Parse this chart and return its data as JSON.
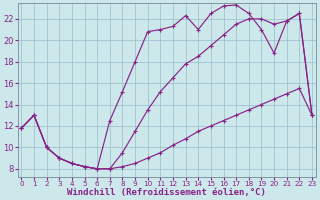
{
  "bg_color": "#cce8ea",
  "line_color": "#882288",
  "grid_color": "#99bbcc",
  "xlabel": "Windchill (Refroidissement éolien,°C)",
  "xlabel_fontsize": 6.5,
  "xtick_fontsize": 5.2,
  "ytick_fontsize": 6,
  "xlim": [
    -0.3,
    23.3
  ],
  "ylim": [
    7.2,
    23.5
  ],
  "yticks": [
    8,
    10,
    12,
    14,
    16,
    18,
    20,
    22
  ],
  "xticks": [
    0,
    1,
    2,
    3,
    4,
    5,
    6,
    7,
    8,
    9,
    10,
    11,
    12,
    13,
    14,
    15,
    16,
    17,
    18,
    19,
    20,
    21,
    22,
    23
  ],
  "line_upper_x": [
    0,
    1,
    2,
    3,
    4,
    5,
    6,
    7,
    8,
    9,
    10,
    11,
    12,
    13,
    14,
    15,
    16,
    17,
    18,
    19,
    20,
    21,
    22,
    23
  ],
  "line_upper_y": [
    11.8,
    13.0,
    10.0,
    9.0,
    8.5,
    8.2,
    8.0,
    12.5,
    15.2,
    18.0,
    20.8,
    21.0,
    21.3,
    22.3,
    21.0,
    22.5,
    23.2,
    23.3,
    22.5,
    21.0,
    18.8,
    21.8,
    22.5,
    13.0
  ],
  "line_diag_x": [
    0,
    1,
    2,
    3,
    4,
    5,
    6,
    7,
    8,
    9,
    10,
    11,
    12,
    13,
    14,
    15,
    16,
    17,
    18,
    19,
    20,
    21,
    22,
    23
  ],
  "line_diag_y": [
    11.8,
    13.0,
    10.0,
    9.0,
    8.5,
    8.2,
    8.0,
    8.0,
    9.5,
    11.5,
    13.5,
    15.2,
    16.5,
    17.8,
    18.5,
    19.5,
    20.5,
    21.5,
    22.0,
    22.0,
    21.5,
    21.8,
    22.5,
    13.0
  ],
  "line_lower_x": [
    0,
    1,
    2,
    3,
    4,
    5,
    6,
    7,
    8,
    9,
    10,
    11,
    12,
    13,
    14,
    15,
    16,
    17,
    18,
    19,
    20,
    21,
    22,
    23
  ],
  "line_lower_y": [
    11.8,
    13.0,
    10.0,
    9.0,
    8.5,
    8.2,
    8.0,
    8.0,
    8.2,
    8.5,
    9.0,
    9.5,
    10.2,
    10.8,
    11.5,
    12.0,
    12.5,
    13.0,
    13.5,
    14.0,
    14.5,
    15.0,
    15.5,
    13.0
  ]
}
